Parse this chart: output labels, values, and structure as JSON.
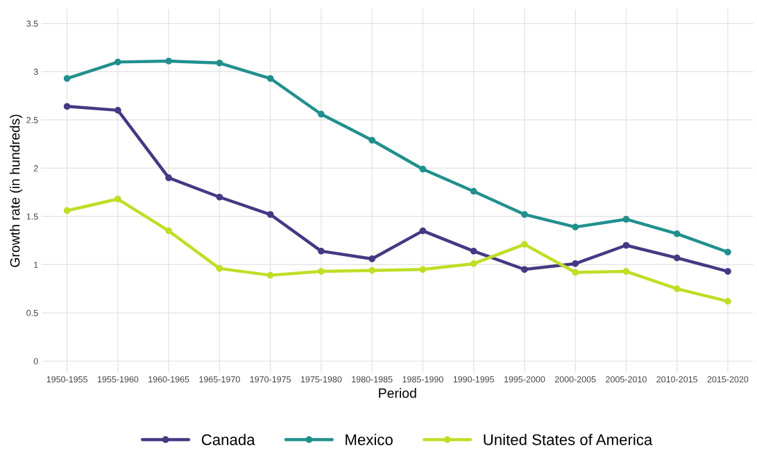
{
  "chart_data": {
    "type": "line",
    "xlabel": "Period",
    "ylabel": "Growth rate (in hundreds)",
    "categories": [
      "1950-1955",
      "1955-1960",
      "1960-1965",
      "1965-1970",
      "1970-1975",
      "1975-1980",
      "1980-1985",
      "1985-1990",
      "1990-1995",
      "1995-2000",
      "2000-2005",
      "2005-2010",
      "2010-2015",
      "2015-2020"
    ],
    "series": [
      {
        "name": "Canada",
        "color": "#443983",
        "values": [
          2.64,
          2.6,
          1.9,
          1.7,
          1.52,
          1.14,
          1.06,
          1.35,
          1.14,
          0.95,
          1.01,
          1.2,
          1.07,
          0.93
        ]
      },
      {
        "name": "Mexico",
        "color": "#21908d",
        "values": [
          2.93,
          3.1,
          3.11,
          3.09,
          2.93,
          2.56,
          2.29,
          1.99,
          1.76,
          1.52,
          1.39,
          1.47,
          1.32,
          1.13
        ]
      },
      {
        "name": "United States of America",
        "color": "#bddf26",
        "values": [
          1.56,
          1.68,
          1.35,
          0.96,
          0.89,
          0.93,
          0.94,
          0.95,
          1.01,
          1.21,
          0.92,
          0.93,
          0.75,
          0.62
        ]
      }
    ],
    "ylim": [
      -0.12,
      3.65
    ],
    "yticks": [
      0,
      0.5,
      1,
      1.5,
      2,
      2.5,
      3,
      3.5
    ],
    "grid": true,
    "legend": "bottom",
    "marker": "circle",
    "line_style": "solid"
  }
}
